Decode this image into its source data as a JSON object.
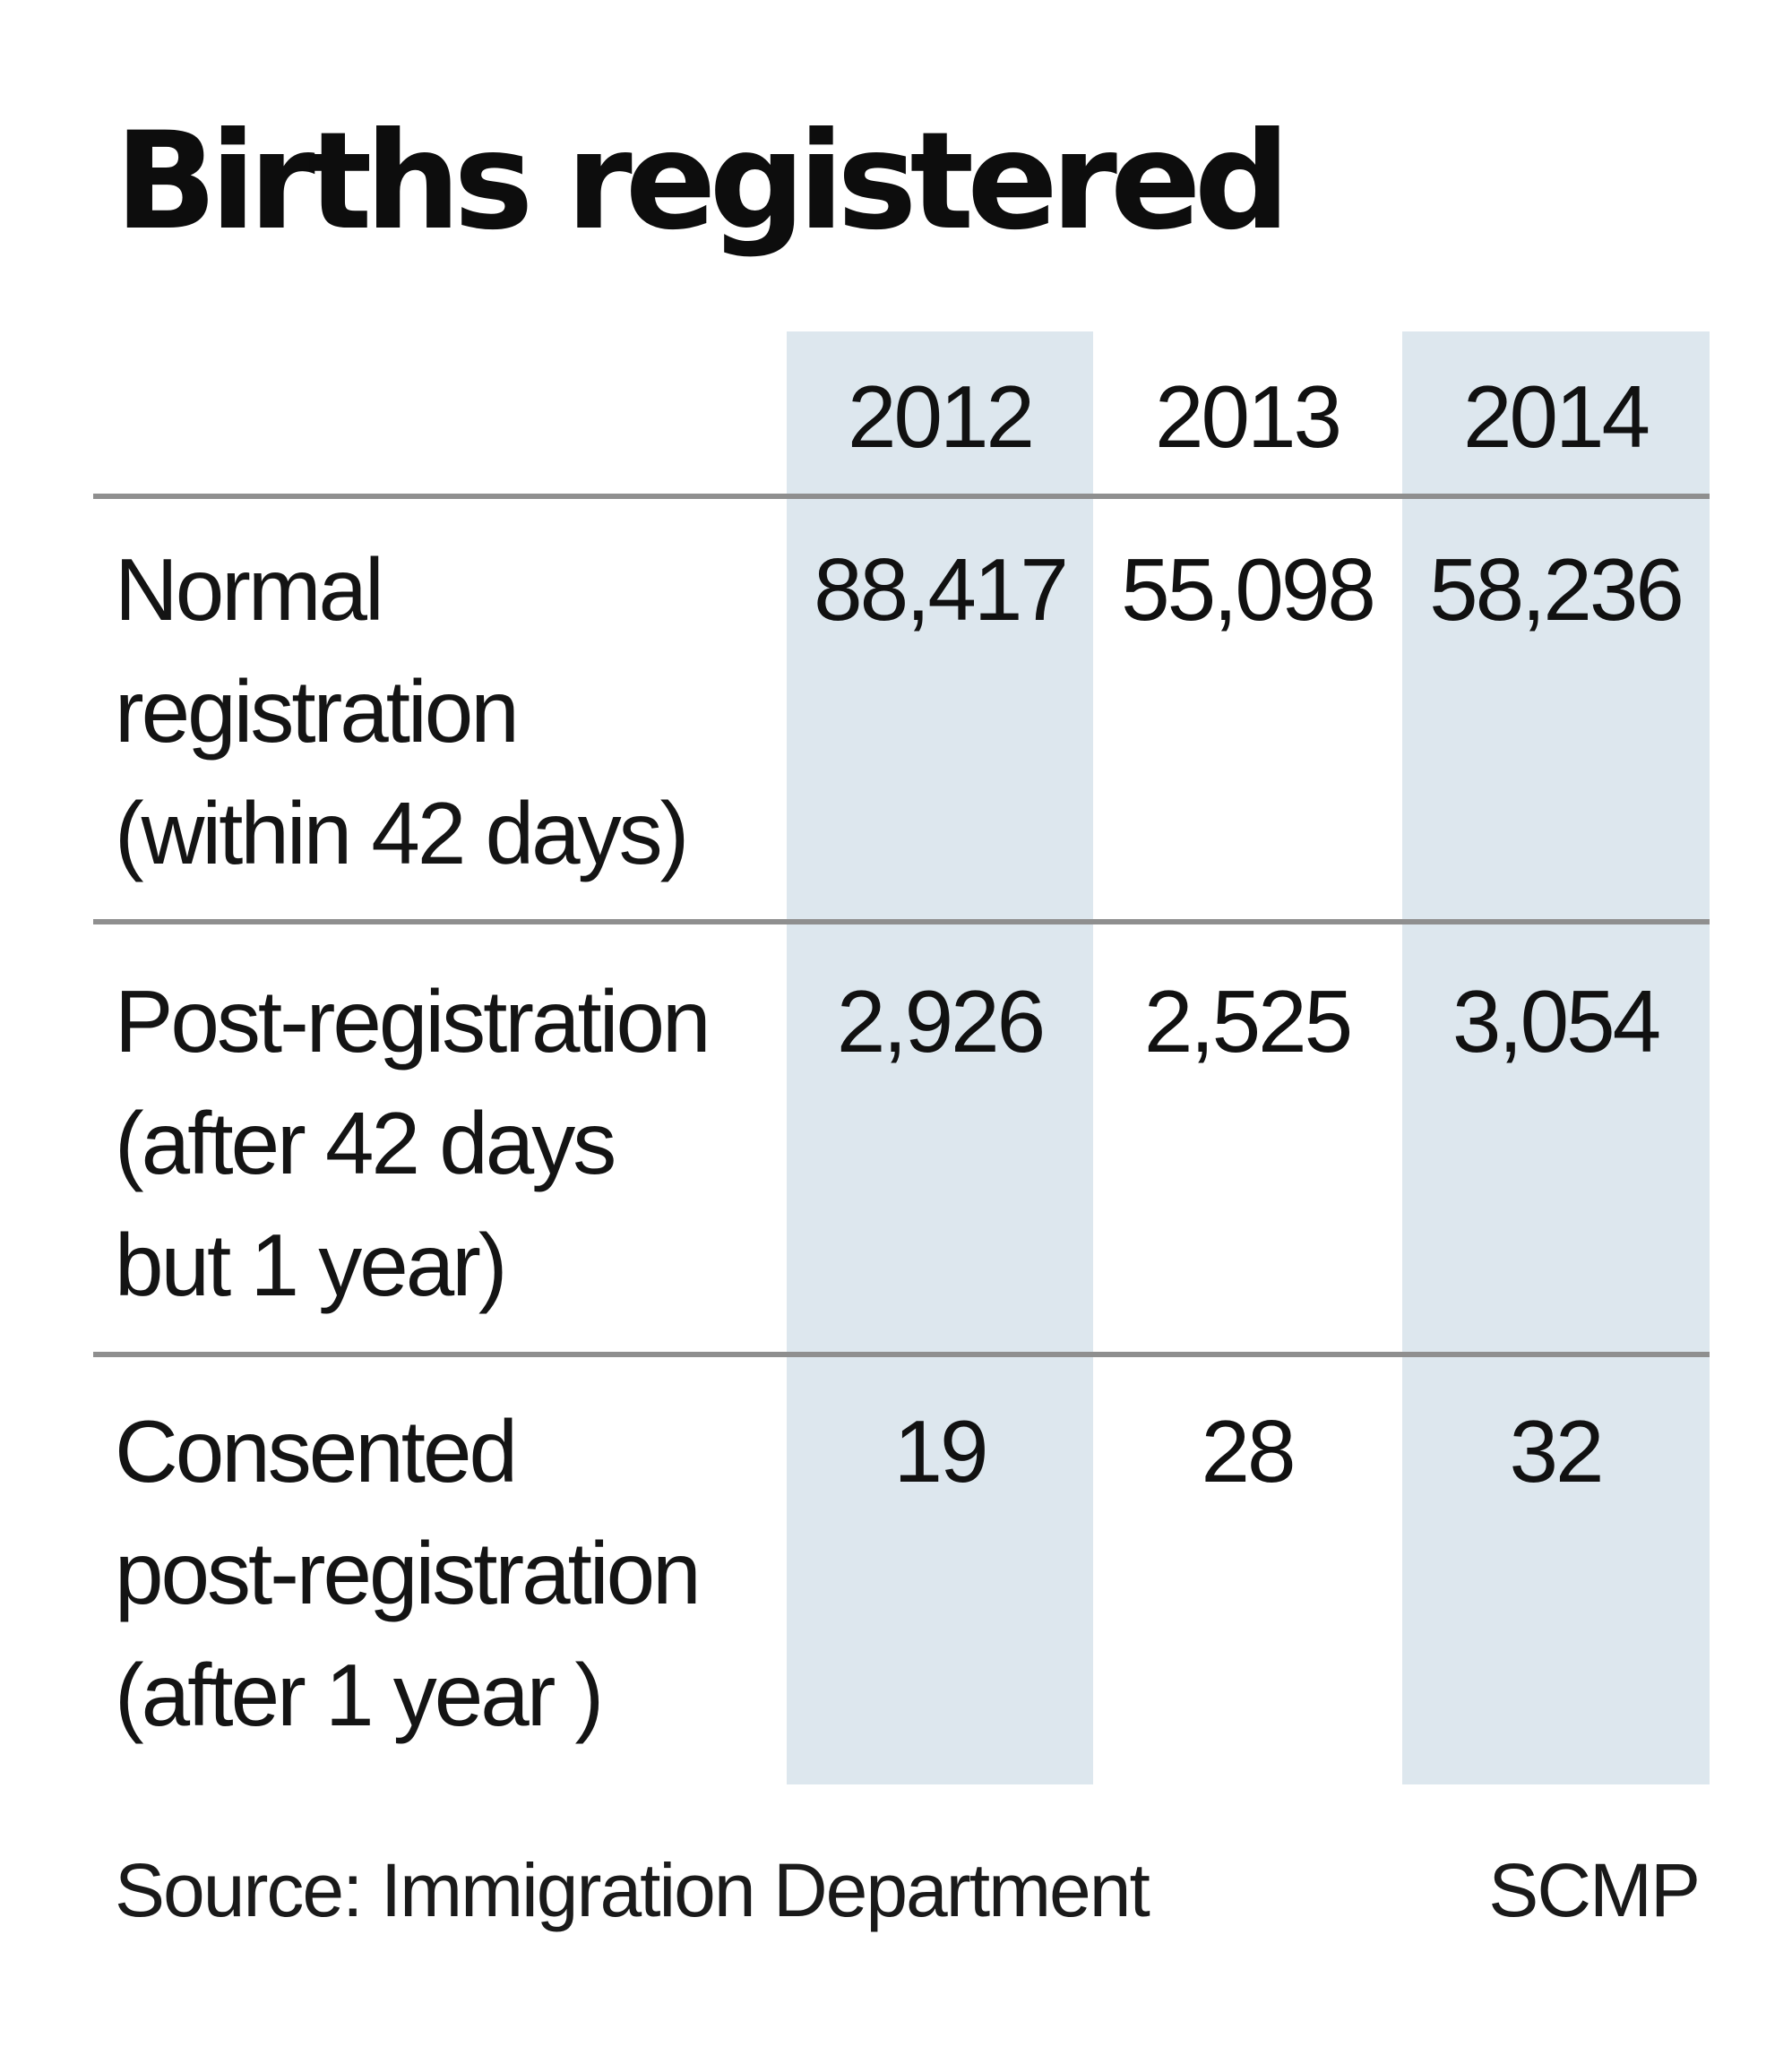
{
  "title": "Births registered",
  "header": {
    "years": [
      "2012",
      "2013",
      "2014"
    ]
  },
  "rows": [
    {
      "label_lines": [
        "Normal",
        "registration",
        "(within 42 days)"
      ],
      "values": [
        "88,417",
        "55,098",
        "58,236"
      ]
    },
    {
      "label_lines": [
        "Post-registration",
        "(after 42 days",
        "but 1 year)"
      ],
      "values": [
        "2,926",
        "2,525",
        "3,054"
      ]
    },
    {
      "label_lines": [
        "Consented",
        "post-registration",
        "(after 1 year )"
      ],
      "values": [
        "19",
        "28",
        "32"
      ]
    }
  ],
  "footer": {
    "source": "Source: Immigration Department",
    "brand": "SCMP"
  },
  "colors": {
    "column_shade": "#dde7ee",
    "rule": "#8f8f8f",
    "text": "#111111"
  },
  "chart_data": {
    "type": "table",
    "title": "Births registered",
    "columns": [
      "2012",
      "2013",
      "2014"
    ],
    "rows": [
      {
        "label": "Normal registration (within 42 days)",
        "values": [
          88417,
          55098,
          58236
        ]
      },
      {
        "label": "Post-registration (after 42 days but 1 year)",
        "values": [
          2926,
          2525,
          3054
        ]
      },
      {
        "label": "Consented post-registration (after 1 year )",
        "values": [
          19,
          28,
          32
        ]
      }
    ],
    "source": "Source: Immigration Department"
  }
}
